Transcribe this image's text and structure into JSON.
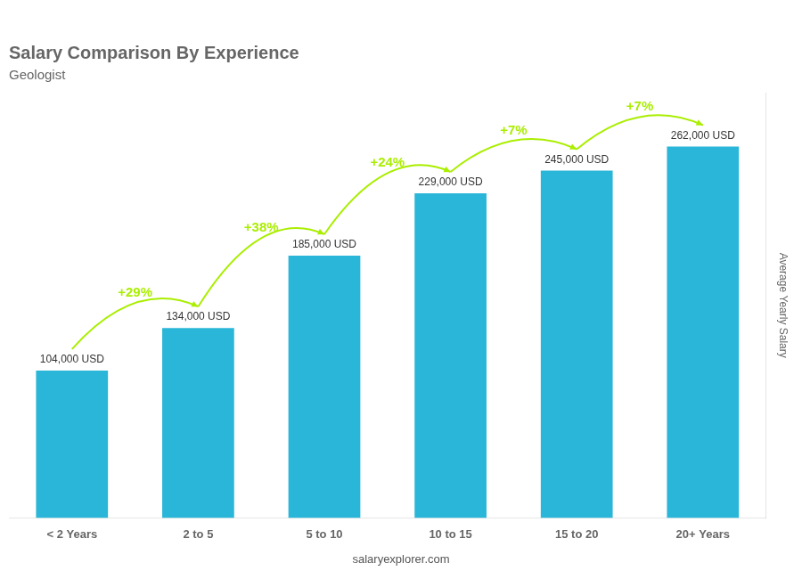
{
  "chart_data": {
    "type": "bar",
    "title": "Salary Comparison By Experience",
    "subtitle": "Geologist",
    "categories": [
      "< 2 Years",
      "2 to 5",
      "5 to 10",
      "10 to 15",
      "15 to 20",
      "20+ Years"
    ],
    "values": [
      104000,
      134000,
      185000,
      229000,
      245000,
      262000
    ],
    "value_labels": [
      "104,000 USD",
      "134,000 USD",
      "185,000 USD",
      "229,000 USD",
      "245,000 USD",
      "262,000 USD"
    ],
    "data_labels": true,
    "color": "#29b6d8",
    "ylim": [
      0,
      300000
    ],
    "ylabel": "Average Yearly Salary",
    "tick_labels": "x",
    "grid": false,
    "annotations": [
      {
        "text": "+29%",
        "color": "#aaee00"
      },
      {
        "text": "+38%",
        "color": "#aaee00"
      },
      {
        "text": "+24%",
        "color": "#aaee00"
      },
      {
        "text": "+7%",
        "color": "#aaee00"
      },
      {
        "text": "+7%",
        "color": "#aaee00"
      }
    ],
    "footer": "salaryexplorer.com"
  }
}
